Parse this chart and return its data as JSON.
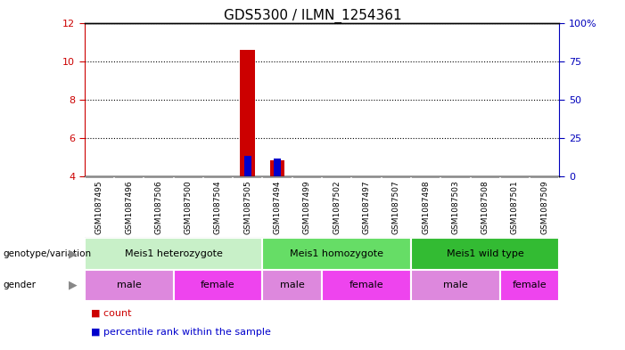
{
  "title": "GDS5300 / ILMN_1254361",
  "samples": [
    "GSM1087495",
    "GSM1087496",
    "GSM1087506",
    "GSM1087500",
    "GSM1087504",
    "GSM1087505",
    "GSM1087494",
    "GSM1087499",
    "GSM1087502",
    "GSM1087497",
    "GSM1087507",
    "GSM1087498",
    "GSM1087503",
    "GSM1087508",
    "GSM1087501",
    "GSM1087509"
  ],
  "count_values": [
    4.0,
    4.0,
    4.0,
    4.0,
    4.0,
    10.6,
    4.85,
    4.0,
    4.0,
    4.0,
    4.0,
    4.0,
    4.0,
    4.0,
    4.0,
    4.0
  ],
  "percentile_values": [
    4.0,
    4.0,
    4.0,
    4.0,
    4.0,
    5.1,
    4.95,
    4.0,
    4.0,
    4.0,
    4.0,
    4.0,
    4.0,
    4.0,
    4.0,
    4.0
  ],
  "ylim_left": [
    4,
    12
  ],
  "ylim_right": [
    0,
    100
  ],
  "yticks_left": [
    4,
    6,
    8,
    10,
    12
  ],
  "yticks_right": [
    0,
    25,
    50,
    75,
    100
  ],
  "ytick_labels_right": [
    "0",
    "25",
    "50",
    "75",
    "100%"
  ],
  "bar_baseline": 4.0,
  "count_color": "#cc0000",
  "percentile_color": "#0000cc",
  "bar_width": 0.5,
  "genotype_groups": [
    {
      "label": "Meis1 heterozygote",
      "start": 0,
      "end": 5,
      "color": "#c8f0c8"
    },
    {
      "label": "Meis1 homozygote",
      "start": 6,
      "end": 10,
      "color": "#66dd66"
    },
    {
      "label": "Meis1 wild type",
      "start": 11,
      "end": 15,
      "color": "#33bb33"
    }
  ],
  "gender_groups": [
    {
      "label": "male",
      "start": 0,
      "end": 2,
      "color": "#dd88dd"
    },
    {
      "label": "female",
      "start": 3,
      "end": 5,
      "color": "#ee44ee"
    },
    {
      "label": "male",
      "start": 6,
      "end": 7,
      "color": "#dd88dd"
    },
    {
      "label": "female",
      "start": 8,
      "end": 10,
      "color": "#ee44ee"
    },
    {
      "label": "male",
      "start": 11,
      "end": 13,
      "color": "#dd88dd"
    },
    {
      "label": "female",
      "start": 14,
      "end": 15,
      "color": "#ee44ee"
    }
  ],
  "legend_items": [
    {
      "label": "count",
      "color": "#cc0000"
    },
    {
      "label": "percentile rank within the sample",
      "color": "#0000cc"
    }
  ],
  "annotation_left": "genotype/variation",
  "annotation_gender": "gender",
  "bg_color": "#ffffff",
  "plot_bg": "#ffffff",
  "sample_bg": "#cccccc",
  "tick_color_left": "#cc0000",
  "tick_color_right": "#0000bb"
}
